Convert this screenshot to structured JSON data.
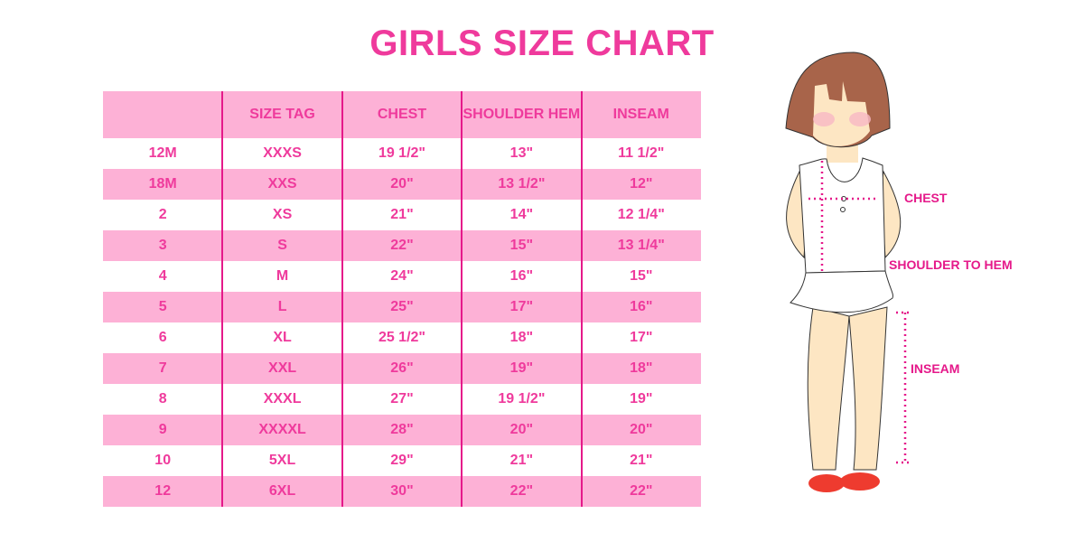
{
  "title": "GIRLS SIZE CHART",
  "chart_data": {
    "type": "table",
    "title": "GIRLS SIZE CHART",
    "columns": [
      "",
      "SIZE TAG",
      "CHEST",
      "SHOULDER HEM",
      "INSEAM"
    ],
    "rows": [
      [
        "12M",
        "XXXS",
        "19 1/2\"",
        "13\"",
        "11 1/2\""
      ],
      [
        "18M",
        "XXS",
        "20\"",
        "13 1/2\"",
        "12\""
      ],
      [
        "2",
        "XS",
        "21\"",
        "14\"",
        "12 1/4\""
      ],
      [
        "3",
        "S",
        "22\"",
        "15\"",
        "13 1/4\""
      ],
      [
        "4",
        "M",
        "24\"",
        "16\"",
        "15\""
      ],
      [
        "5",
        "L",
        "25\"",
        "17\"",
        "16\""
      ],
      [
        "6",
        "XL",
        "25 1/2\"",
        "18\"",
        "17\""
      ],
      [
        "7",
        "XXL",
        "26\"",
        "19\"",
        "18\""
      ],
      [
        "8",
        "XXXL",
        "27\"",
        "19 1/2\"",
        "19\""
      ],
      [
        "9",
        "XXXXL",
        "28\"",
        "20\"",
        "20\""
      ],
      [
        "10",
        "5XL",
        "29\"",
        "21\"",
        "21\""
      ],
      [
        "12",
        "6XL",
        "30\"",
        "22\"",
        "22\""
      ]
    ]
  },
  "figure": {
    "labels": {
      "chest": "CHEST",
      "shoulder": "SHOULDER TO HEM",
      "inseam": "INSEAM"
    }
  },
  "colors": {
    "accent": "#ef3a9c",
    "row_pink": "#fdb1d6",
    "divider": "#e5198a"
  }
}
